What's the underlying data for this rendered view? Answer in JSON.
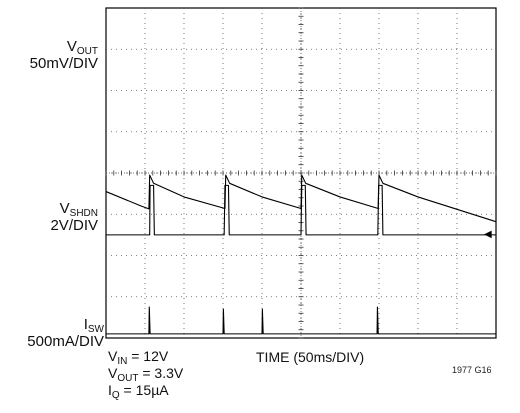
{
  "chart_data": {
    "type": "line",
    "title": "",
    "grid": true,
    "divisions": {
      "x": 10,
      "y": 8
    },
    "x_axis": {
      "label": "TIME (50ms/DIV)",
      "scale_per_div": "50ms",
      "range_div": [
        0,
        10
      ]
    },
    "channels": [
      {
        "name_main": "V",
        "name_sub": "OUT",
        "scale": "50mV/DIV",
        "waveform": "sawtooth",
        "points_div": [
          [
            0.0,
            3.55
          ],
          [
            0.9,
            3.2
          ],
          [
            1.1,
            3.13
          ],
          [
            1.12,
            3.95
          ],
          [
            1.22,
            3.75
          ],
          [
            2.0,
            3.42
          ],
          [
            3.05,
            3.14
          ],
          [
            3.07,
            3.95
          ],
          [
            3.17,
            3.75
          ],
          [
            4.0,
            3.42
          ],
          [
            5.0,
            3.14
          ],
          [
            5.02,
            3.95
          ],
          [
            5.12,
            3.75
          ],
          [
            6.0,
            3.42
          ],
          [
            6.98,
            3.14
          ],
          [
            7.0,
            3.95
          ],
          [
            7.1,
            3.75
          ],
          [
            8.0,
            3.42
          ],
          [
            10.0,
            2.82
          ]
        ]
      },
      {
        "name_main": "V",
        "name_sub": "SHDN",
        "scale": "2V/DIV",
        "waveform": "pulse",
        "points_div": [
          [
            0.0,
            2.5
          ],
          [
            1.12,
            2.5
          ],
          [
            1.13,
            3.7
          ],
          [
            1.22,
            3.7
          ],
          [
            1.24,
            2.5
          ],
          [
            3.03,
            2.5
          ],
          [
            3.05,
            3.7
          ],
          [
            3.14,
            3.7
          ],
          [
            3.16,
            2.5
          ],
          [
            5.0,
            2.5
          ],
          [
            5.02,
            3.7
          ],
          [
            5.11,
            3.7
          ],
          [
            5.13,
            2.5
          ],
          [
            6.97,
            2.5
          ],
          [
            6.99,
            3.7
          ],
          [
            7.08,
            3.7
          ],
          [
            7.1,
            2.5
          ],
          [
            10.0,
            2.5
          ]
        ]
      },
      {
        "name_main": "I",
        "name_sub": "SW",
        "scale": "500mA/DIV",
        "waveform": "spike",
        "points_div": [
          [
            0.0,
            0.1
          ],
          [
            1.1,
            0.1
          ],
          [
            1.11,
            0.75
          ],
          [
            1.13,
            0.1
          ],
          [
            3.0,
            0.1
          ],
          [
            3.01,
            0.7
          ],
          [
            3.03,
            0.1
          ],
          [
            4.0,
            0.1
          ],
          [
            4.01,
            0.7
          ],
          [
            4.03,
            0.1
          ],
          [
            6.95,
            0.1
          ],
          [
            6.96,
            0.75
          ],
          [
            6.98,
            0.1
          ],
          [
            10.0,
            0.1
          ]
        ]
      }
    ],
    "ground_marker": "◀",
    "conditions": [
      {
        "main": "V",
        "sub": "IN",
        "rest": " = 12V"
      },
      {
        "main": "V",
        "sub": "OUT",
        "rest": " = 3.3V"
      },
      {
        "main": "I",
        "sub": "Q",
        "rest": " = 15µA"
      }
    ],
    "figure_id": "1977 G16"
  }
}
